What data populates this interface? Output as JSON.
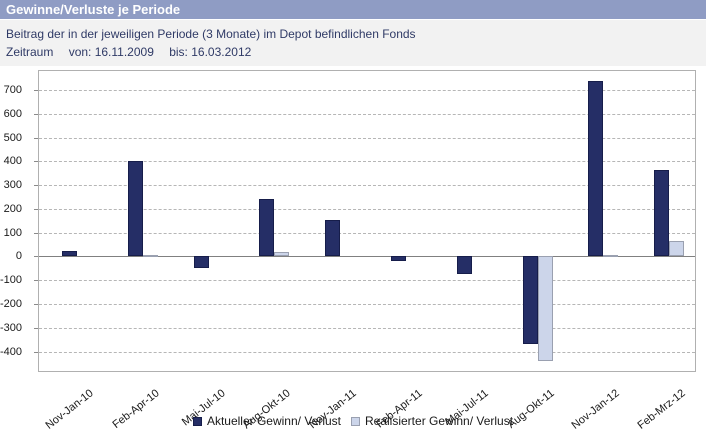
{
  "header": {
    "title": "Gewinne/Verluste je Periode"
  },
  "subtitle": {
    "line1": "Beitrag der in der jeweiligen Periode (3 Monate) im Depot befindlichen Fonds",
    "zeitraum_label": "Zeitraum",
    "von": "von: 16.11.2009",
    "bis": "bis: 16.03.2012"
  },
  "colors": {
    "header_bg": "#8f9cc4",
    "header_text": "#ffffff",
    "subtitle_bg": "#f2f2f2",
    "subtitle_text": "#2f3a66",
    "bar_aktuell": "#252e66",
    "bar_realisiert": "#ccd5ea",
    "bar_realisiert_border": "#9aa0b0",
    "grid": "#b6b6b6",
    "zero_line": "#808080",
    "plot_border": "#b0b0b0"
  },
  "chart_data": {
    "type": "bar",
    "title": "Gewinne/Verluste je Periode",
    "subtitle": "Beitrag der in der jeweiligen Periode (3 Monate) im Depot befindlichen Fonds",
    "period_from": "16.11.2009",
    "period_to": "16.03.2012",
    "categories": [
      "Nov-Jan-10",
      "Feb-Apr-10",
      "Mai-Jul-10",
      "Aug-Okt-10",
      "Nov-Jan-11",
      "Feb-Apr-11",
      "Mai-Jul-11",
      "Aug-Okt-11",
      "Nov-Jan-12",
      "Feb-Mrz-12"
    ],
    "series": [
      {
        "name": "Aktueller Gewinn/ Verlust",
        "values": [
          25,
          400,
          -50,
          240,
          155,
          -20,
          -75,
          -370,
          740,
          365
        ]
      },
      {
        "name": "Realisierter Gewinn/ Verlust",
        "values": [
          0,
          5,
          0,
          20,
          0,
          0,
          0,
          -440,
          5,
          65
        ]
      }
    ],
    "xlabel": "",
    "ylabel": "",
    "ylim": [
      -490,
      780
    ],
    "yticks": [
      -400,
      -300,
      -200,
      -100,
      0,
      100,
      200,
      300,
      400,
      500,
      600,
      700
    ],
    "grid": "horizontal-dashed",
    "legend_position": "bottom-center"
  }
}
